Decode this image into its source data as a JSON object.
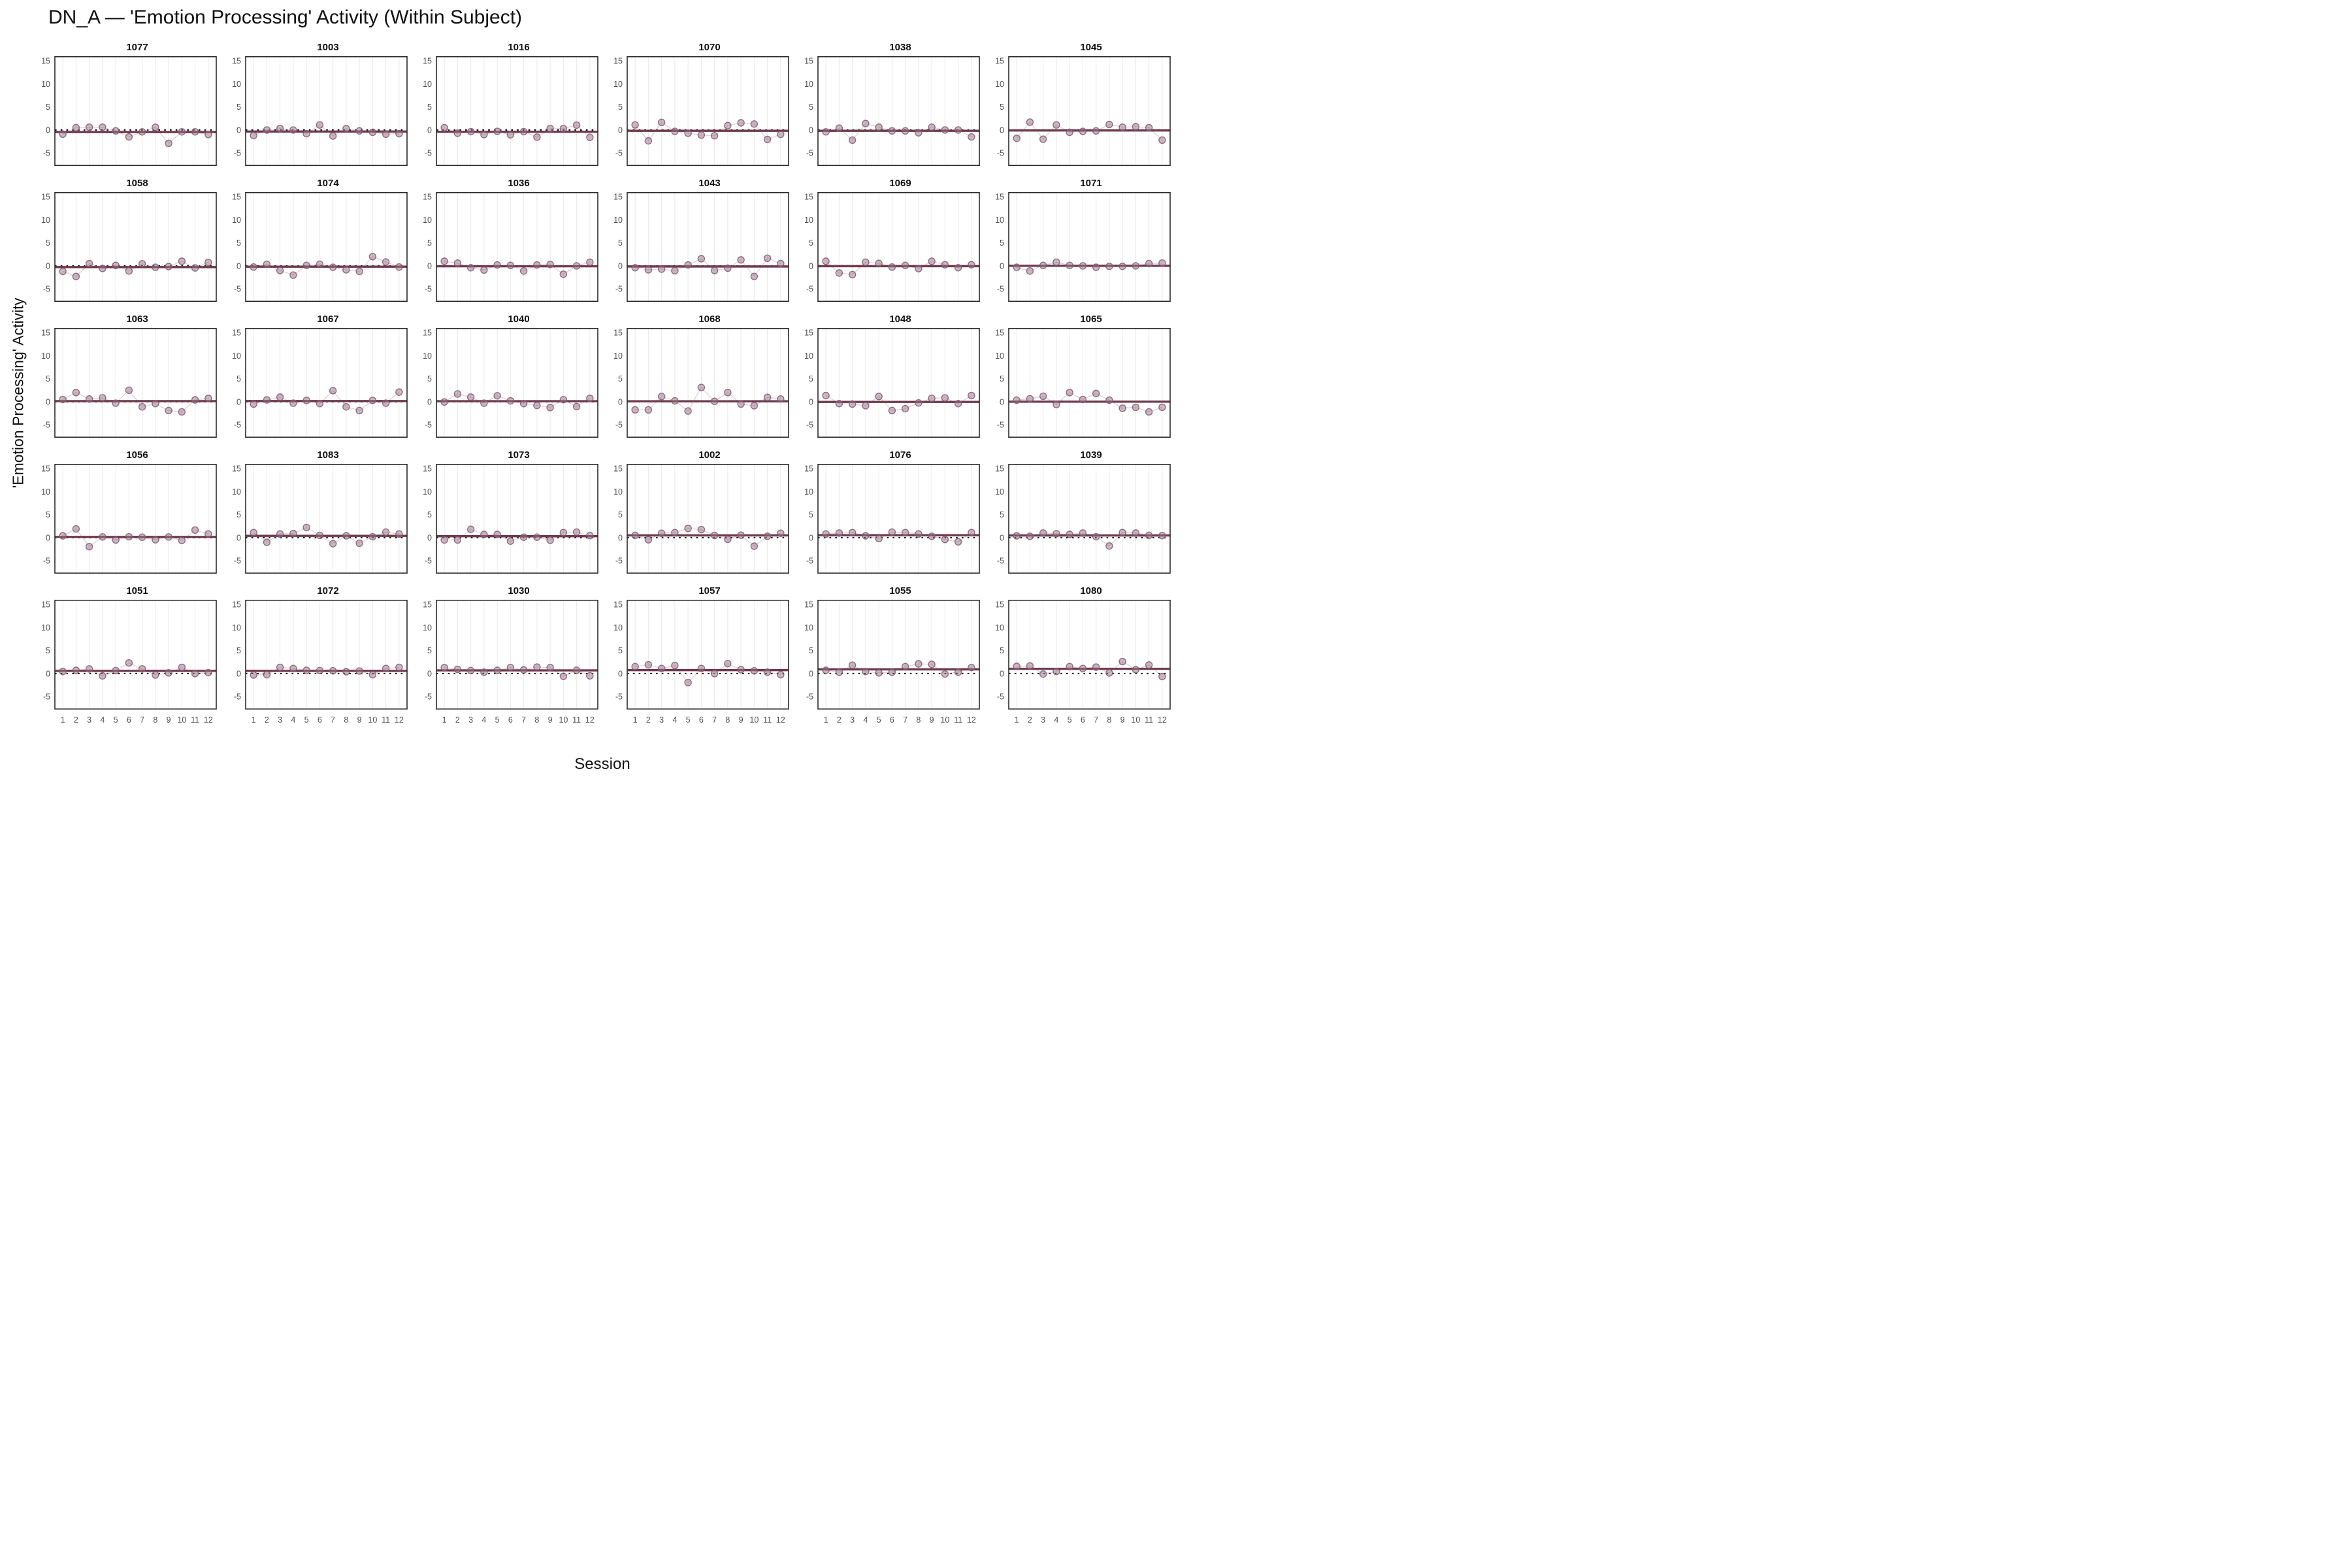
{
  "title": "DN_A — 'Emotion Processing' Activity (Within Subject)",
  "chart_data": {
    "type": "line",
    "subtype": "faceted-small-multiples-scatter-line",
    "xlabel": "Session",
    "ylabel": "'Emotion Processing' Activity",
    "x": [
      1,
      2,
      3,
      4,
      5,
      6,
      7,
      8,
      9,
      10,
      11,
      12
    ],
    "xticks": [
      "1",
      "2",
      "3",
      "4",
      "5",
      "6",
      "7",
      "8",
      "9",
      "10",
      "11",
      "12"
    ],
    "yticks": [
      15,
      10,
      5,
      0,
      -5
    ],
    "ylim": [
      -7.8,
      16
    ],
    "grid": "vertical-only",
    "layout": {
      "rows": 5,
      "cols": 6,
      "x_ticks_bottom_row_only": true,
      "y_ticks_every_panel": true
    },
    "reference_lines": {
      "dotted_black_at": 0,
      "solid_dark_line": "per-facet mean of values"
    },
    "colors": {
      "point_fill": "#9a7387",
      "point_stroke": "#7f5870",
      "series_line": "#b799a8",
      "mean_line": "#6d3a4d",
      "zero_line": "#111111",
      "gridline": "#e9e9e9",
      "panel_border": "#2b2b2b",
      "tick_text": "#4d4d4d",
      "facet_title_text": "#111111"
    },
    "facets": [
      {
        "id": "1077",
        "values": [
          -0.9,
          0.5,
          0.6,
          0.6,
          -0.2,
          -1.5,
          -0.4,
          0.6,
          -2.9,
          -0.4,
          -0.4,
          -1.0
        ]
      },
      {
        "id": "1003",
        "values": [
          -1.2,
          0.0,
          0.3,
          0.0,
          -0.8,
          1.1,
          -1.3,
          0.3,
          -0.2,
          -0.5,
          -0.9,
          -0.8
        ]
      },
      {
        "id": "1016",
        "values": [
          0.5,
          -0.7,
          -0.35,
          -1.0,
          -0.3,
          -1.05,
          -0.35,
          -1.55,
          0.3,
          0.3,
          1.05,
          -1.6
        ]
      },
      {
        "id": "1070",
        "values": [
          1.1,
          -2.35,
          1.65,
          -0.3,
          -0.7,
          -1.1,
          -1.25,
          0.95,
          1.55,
          1.3,
          -2.05,
          -0.95
        ]
      },
      {
        "id": "1038",
        "values": [
          -0.4,
          0.4,
          -2.2,
          1.4,
          0.6,
          -0.2,
          -0.2,
          -0.6,
          0.6,
          0.0,
          0.0,
          -1.5
        ]
      },
      {
        "id": "1045",
        "values": [
          -1.8,
          1.7,
          -2.0,
          1.1,
          -0.5,
          -0.3,
          -0.2,
          1.2,
          0.6,
          0.7,
          0.5,
          -2.2
        ]
      },
      {
        "id": "1058",
        "values": [
          -1.2,
          -2.3,
          0.5,
          -0.55,
          0.1,
          -1.1,
          0.45,
          -0.3,
          -0.15,
          1.0,
          -0.45,
          0.75
        ]
      },
      {
        "id": "1074",
        "values": [
          -0.25,
          0.35,
          -1.0,
          -2.0,
          0.1,
          0.35,
          -0.3,
          -0.85,
          -1.2,
          2.0,
          0.85,
          -0.25
        ]
      },
      {
        "id": "1036",
        "values": [
          1.0,
          0.6,
          -0.4,
          -0.9,
          0.2,
          0.1,
          -1.1,
          0.2,
          0.3,
          -1.8,
          0.0,
          0.8
        ]
      },
      {
        "id": "1043",
        "values": [
          -0.4,
          -0.85,
          -0.7,
          -1.05,
          0.2,
          1.55,
          -1.0,
          -0.5,
          1.3,
          -2.3,
          1.65,
          0.5
        ]
      },
      {
        "id": "1069",
        "values": [
          1.0,
          -1.55,
          -1.9,
          0.8,
          0.55,
          -0.25,
          0.1,
          -0.6,
          1.0,
          0.25,
          -0.4,
          0.25
        ]
      },
      {
        "id": "1071",
        "values": [
          -0.3,
          -1.1,
          0.1,
          0.8,
          0.1,
          0.0,
          -0.3,
          -0.1,
          -0.1,
          0.0,
          0.5,
          0.6
        ]
      },
      {
        "id": "1063",
        "values": [
          0.5,
          2.0,
          0.6,
          0.85,
          -0.3,
          2.5,
          -1.1,
          -0.4,
          -1.9,
          -2.2,
          0.4,
          0.75
        ]
      },
      {
        "id": "1067",
        "values": [
          -0.5,
          0.4,
          1.0,
          -0.3,
          0.3,
          -0.4,
          2.4,
          -1.1,
          -1.9,
          0.3,
          -0.3,
          2.1
        ]
      },
      {
        "id": "1040",
        "values": [
          -0.05,
          1.7,
          1.0,
          -0.3,
          1.3,
          0.2,
          -0.4,
          -0.8,
          -1.25,
          0.45,
          -1.05,
          0.75
        ]
      },
      {
        "id": "1068",
        "values": [
          -1.75,
          -1.75,
          1.15,
          0.2,
          -2.0,
          3.1,
          0.1,
          2.0,
          -0.5,
          -0.85,
          0.95,
          0.6
        ]
      },
      {
        "id": "1048",
        "values": [
          1.35,
          -0.4,
          -0.5,
          -0.85,
          1.15,
          -1.9,
          -1.5,
          -0.25,
          0.75,
          0.85,
          -0.4,
          1.35
        ]
      },
      {
        "id": "1065",
        "values": [
          0.35,
          0.65,
          1.2,
          -0.6,
          2.0,
          0.5,
          1.8,
          0.35,
          -1.4,
          -1.2,
          -2.2,
          -1.2
        ]
      },
      {
        "id": "1056",
        "values": [
          0.4,
          1.9,
          -1.95,
          0.15,
          -0.5,
          0.2,
          0.1,
          -0.45,
          0.15,
          -0.6,
          1.65,
          0.8
        ]
      },
      {
        "id": "1083",
        "values": [
          1.1,
          -1.0,
          0.8,
          0.9,
          2.2,
          0.5,
          -1.3,
          0.4,
          -1.2,
          0.2,
          1.2,
          0.8
        ]
      },
      {
        "id": "1073",
        "values": [
          -0.5,
          -0.5,
          1.8,
          0.7,
          0.7,
          -0.75,
          0.1,
          0.1,
          -0.55,
          1.1,
          1.2,
          0.45
        ]
      },
      {
        "id": "1002",
        "values": [
          0.5,
          -0.45,
          0.95,
          1.1,
          2.0,
          1.75,
          0.5,
          -0.35,
          0.55,
          -1.85,
          0.3,
          0.95
        ]
      },
      {
        "id": "1076",
        "values": [
          0.8,
          1.0,
          1.1,
          0.4,
          -0.2,
          1.2,
          1.1,
          0.8,
          0.3,
          -0.4,
          -0.9,
          1.1
        ]
      },
      {
        "id": "1039",
        "values": [
          0.4,
          0.3,
          1.0,
          0.85,
          0.7,
          1.0,
          0.2,
          -1.8,
          1.1,
          1.0,
          0.5,
          0.45
        ]
      },
      {
        "id": "1051",
        "values": [
          0.45,
          0.7,
          1.0,
          -0.5,
          0.65,
          2.3,
          1.0,
          -0.3,
          0.15,
          1.35,
          0.0,
          0.2
        ]
      },
      {
        "id": "1072",
        "values": [
          -0.3,
          -0.25,
          1.35,
          1.1,
          0.7,
          0.65,
          0.6,
          0.4,
          0.55,
          -0.25,
          1.1,
          1.35
        ]
      },
      {
        "id": "1030",
        "values": [
          1.3,
          0.9,
          0.65,
          0.3,
          0.7,
          1.3,
          0.8,
          1.4,
          1.3,
          -0.6,
          0.7,
          -0.5
        ]
      },
      {
        "id": "1057",
        "values": [
          1.5,
          1.9,
          1.1,
          1.75,
          -1.95,
          1.1,
          0.0,
          2.15,
          0.85,
          0.6,
          0.3,
          -0.25
        ]
      },
      {
        "id": "1055",
        "values": [
          0.7,
          0.3,
          1.8,
          0.45,
          0.15,
          0.3,
          1.5,
          2.1,
          2.0,
          -0.1,
          0.3,
          1.3
        ]
      },
      {
        "id": "1080",
        "values": [
          1.55,
          1.65,
          -0.1,
          0.45,
          1.5,
          1.1,
          1.4,
          0.15,
          2.6,
          0.85,
          1.85,
          -0.65
        ]
      }
    ]
  }
}
